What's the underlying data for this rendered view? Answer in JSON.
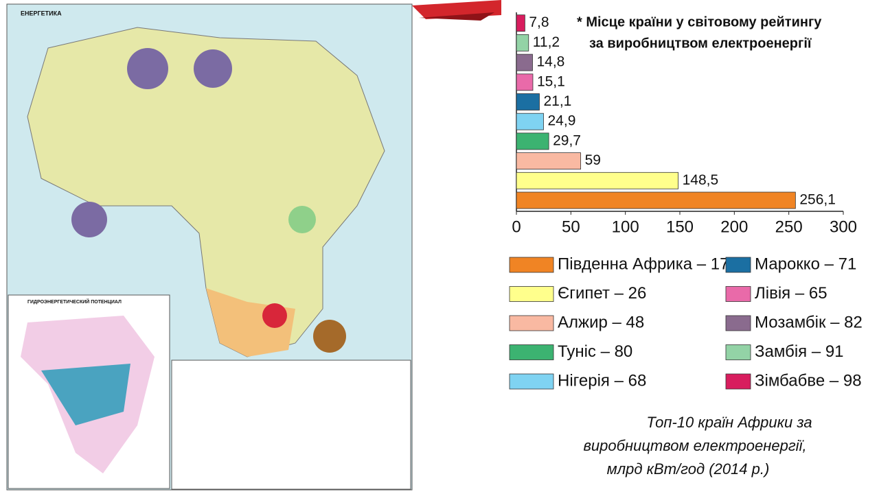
{
  "map": {
    "title": "ЕНЕРГЕТИКА",
    "inset_title": "ГИДРОЭНЕРГЕТИЧЕСКИЙ ПОТЕНЦИАЛ"
  },
  "chart_data": {
    "type": "hbar",
    "note": [
      "* Місце країни у світовому рейтингу",
      "за виробництвом електроенергії"
    ],
    "caption": [
      "Топ-10 країн Африки за",
      "виробництвом електроенергії,",
      "млрд кВт/год (2014 р.)"
    ],
    "xlim": [
      0,
      300
    ],
    "xticks": [
      0,
      50,
      100,
      150,
      200,
      250,
      300
    ],
    "series": [
      {
        "name": "Південна Африка – 17*",
        "color": "#f08424",
        "values": [
          256.1
        ],
        "value_labels": [
          "256,1"
        ]
      },
      {
        "name": "Єгипет – 26",
        "color": "#ffff8c",
        "values": [
          148.5
        ],
        "value_labels": [
          "148,5"
        ]
      },
      {
        "name": "Алжир – 48",
        "color": "#f9b9a2",
        "values": [
          59
        ]
      },
      {
        "name": "Туніс – 80",
        "color": "#3cb371",
        "values": [
          29.7
        ],
        "value_labels": [
          "29,7"
        ]
      },
      {
        "name": "Нігерія – 68",
        "color": "#7fd3f2",
        "values": [
          24.9
        ],
        "value_labels": [
          "24,9"
        ]
      },
      {
        "name": "Марокко – 71",
        "color": "#1b6fa2",
        "values": [
          21.1
        ],
        "value_labels": [
          "21,1"
        ]
      },
      {
        "name": "Лівія – 65",
        "color": "#e96aa9",
        "values": [
          15.1
        ],
        "value_labels": [
          "15,1"
        ]
      },
      {
        "name": "Мозамбік – 82",
        "color": "#8a6b8e",
        "values": [
          14.8
        ],
        "value_labels": [
          "14,8"
        ]
      },
      {
        "name": "Замбія – 91",
        "color": "#93d3a6",
        "values": [
          11.2
        ],
        "value_labels": [
          "11,2"
        ]
      },
      {
        "name": "Зімбабве – 98",
        "color": "#d81d5e",
        "values": [
          7.8
        ],
        "value_labels": [
          "7,8"
        ]
      }
    ]
  }
}
